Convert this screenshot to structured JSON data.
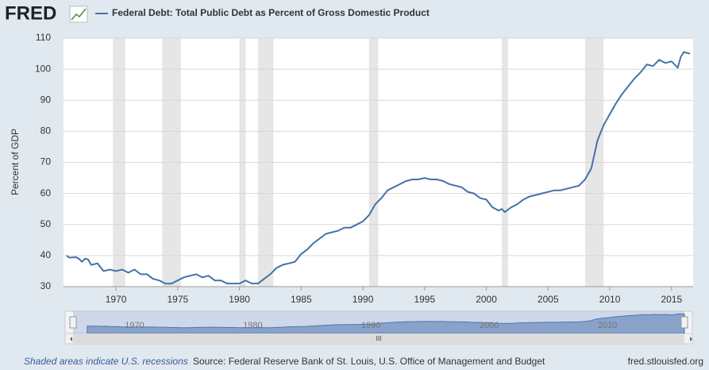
{
  "logo": "FRED",
  "chart_data": {
    "type": "line",
    "title": "Federal Debt: Total Public Debt as Percent of Gross Domestic Product",
    "y_label": "Percent of GDP",
    "series": [
      {
        "name": "Federal Debt: Total Public Debt as Percent of Gross Domestic Product",
        "color": "#4572a7",
        "x": [
          1966,
          1966.25,
          1966.75,
          1967,
          1967.25,
          1967.5,
          1967.75,
          1968,
          1968.5,
          1969,
          1969.5,
          1970,
          1970.5,
          1971,
          1971.5,
          1972,
          1972.5,
          1973,
          1973.5,
          1974,
          1974.5,
          1975,
          1975.5,
          1976,
          1976.5,
          1977,
          1977.5,
          1978,
          1978.5,
          1979,
          1979.5,
          1980,
          1980.5,
          1981,
          1981.5,
          1982,
          1982.5,
          1983,
          1983.5,
          1984,
          1984.5,
          1985,
          1985.5,
          1986,
          1986.5,
          1987,
          1987.5,
          1988,
          1988.5,
          1989,
          1989.5,
          1990,
          1990.5,
          1991,
          1991.5,
          1992,
          1992.5,
          1993,
          1993.5,
          1994,
          1994.5,
          1995,
          1995.5,
          1996,
          1996.5,
          1997,
          1997.5,
          1998,
          1998.5,
          1999,
          1999.5,
          2000,
          2000.5,
          2001,
          2001.25,
          2001.5,
          2002,
          2002.5,
          2003,
          2003.5,
          2004,
          2004.5,
          2005,
          2005.5,
          2006,
          2006.5,
          2007,
          2007.5,
          2008,
          2008.5,
          2009,
          2009.5,
          2010,
          2010.5,
          2011,
          2011.5,
          2012,
          2012.5,
          2013,
          2013.5,
          2014,
          2014.5,
          2015,
          2015.5,
          2015.75,
          2016,
          2016.5
        ],
        "values": [
          40,
          39.3,
          39.5,
          39,
          38,
          39,
          38.7,
          37,
          37.5,
          35,
          35.5,
          35,
          35.5,
          34.5,
          35.5,
          34,
          34,
          32.5,
          32,
          31,
          31,
          32,
          33,
          33.5,
          34,
          33,
          33.5,
          32,
          32,
          31,
          31,
          31,
          32,
          31,
          31,
          32.5,
          34,
          36,
          37,
          37.5,
          38,
          40.5,
          42,
          44,
          45.5,
          47,
          47.5,
          48,
          49,
          49,
          50,
          51,
          53,
          56.5,
          58.5,
          61,
          62,
          63,
          64,
          64.5,
          64.5,
          65,
          64.5,
          64.5,
          64,
          63,
          62.5,
          62,
          60.5,
          60,
          58.5,
          58,
          55.5,
          54.5,
          55,
          54,
          55.5,
          56.5,
          58,
          59,
          59.5,
          60,
          60.5,
          61,
          61,
          61.5,
          62,
          62.5,
          64.5,
          68,
          77,
          82,
          85.5,
          89,
          92,
          94.5,
          97,
          99,
          101.5,
          101,
          103,
          102,
          102.5,
          100.5,
          104,
          105.5,
          105
        ]
      }
    ],
    "xlim": [
      1965.75,
      2016.75
    ],
    "xticks": [
      1970,
      1975,
      1980,
      1985,
      1990,
      1995,
      2000,
      2005,
      2010,
      2015
    ],
    "ylim": [
      30,
      110
    ],
    "yticks": [
      30,
      40,
      50,
      60,
      70,
      80,
      90,
      100,
      110
    ],
    "grid": true,
    "recessions": [
      [
        1969.75,
        1970.75
      ],
      [
        1973.75,
        1975.25
      ],
      [
        1980,
        1980.5
      ],
      [
        1981.5,
        1982.75
      ],
      [
        1990.5,
        1991.25
      ],
      [
        2001.25,
        2001.75
      ],
      [
        2008,
        2009.5
      ]
    ],
    "navigator": {
      "xlim": [
        1964.8,
        2016.5
      ],
      "ylim": [
        0,
        120
      ],
      "xticks": [
        1970,
        1980,
        1990,
        2000,
        2010
      ]
    }
  },
  "footer": {
    "note": "Shaded areas indicate U.S. recessions",
    "source": "Source: Federal Reserve Bank of St. Louis, U.S. Office of Management and Budget",
    "site": "fred.stlouisfed.org"
  }
}
